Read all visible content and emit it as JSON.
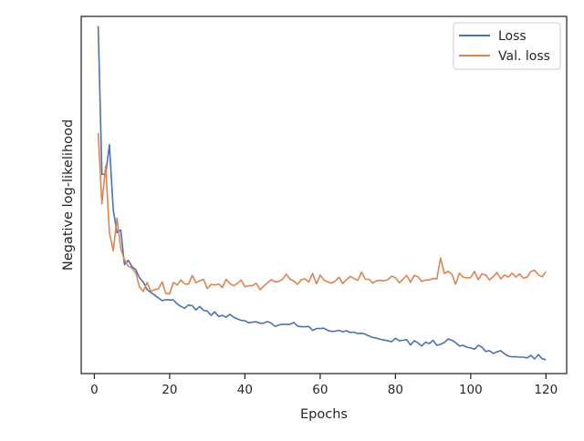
{
  "chart_data": {
    "type": "line",
    "xlabel": "Epochs",
    "ylabel": "Negative log-likelihood",
    "xlim": [
      -3.5,
      125.5
    ],
    "ylim": [
      0.0,
      1.0
    ],
    "x_ticks": [
      0,
      20,
      40,
      60,
      80,
      100,
      120
    ],
    "x_tick_labels": [
      "0",
      "20",
      "40",
      "60",
      "80",
      "100",
      "120"
    ],
    "y_ticks": [],
    "grid": false,
    "legend": {
      "placement": "top-right",
      "entries": [
        "Loss",
        "Val. loss"
      ]
    },
    "colors": {
      "Loss": "#4c72b0",
      "Val. loss": "#dd8452",
      "axis": "#262626"
    },
    "x": [
      1,
      2,
      3,
      4,
      5,
      6,
      7,
      8,
      9,
      10,
      11,
      12,
      13,
      14,
      15,
      16,
      17,
      18,
      19,
      20,
      21,
      22,
      23,
      24,
      25,
      26,
      27,
      28,
      29,
      30,
      31,
      32,
      33,
      34,
      35,
      36,
      37,
      38,
      39,
      40,
      41,
      42,
      43,
      44,
      45,
      46,
      47,
      48,
      49,
      50,
      51,
      52,
      53,
      54,
      55,
      56,
      57,
      58,
      59,
      60,
      61,
      62,
      63,
      64,
      65,
      66,
      67,
      68,
      69,
      70,
      71,
      72,
      73,
      74,
      75,
      76,
      77,
      78,
      79,
      80,
      81,
      82,
      83,
      84,
      85,
      86,
      87,
      88,
      89,
      90,
      91,
      92,
      93,
      94,
      95,
      96,
      97,
      98,
      99,
      100,
      101,
      102,
      103,
      104,
      105,
      106,
      107,
      108,
      109,
      110,
      111,
      112,
      113,
      114,
      115,
      116,
      117,
      118,
      119,
      120
    ],
    "series": [
      {
        "name": "Loss",
        "values": [
          0.973,
          0.558,
          0.558,
          0.641,
          0.459,
          0.395,
          0.402,
          0.305,
          0.317,
          0.299,
          0.291,
          0.268,
          0.256,
          0.235,
          0.227,
          0.22,
          0.212,
          0.204,
          0.207,
          0.206,
          0.206,
          0.195,
          0.188,
          0.183,
          0.192,
          0.19,
          0.178,
          0.188,
          0.177,
          0.175,
          0.163,
          0.173,
          0.16,
          0.163,
          0.158,
          0.166,
          0.158,
          0.153,
          0.149,
          0.148,
          0.142,
          0.144,
          0.145,
          0.141,
          0.141,
          0.146,
          0.141,
          0.132,
          0.136,
          0.138,
          0.138,
          0.138,
          0.143,
          0.133,
          0.131,
          0.131,
          0.132,
          0.121,
          0.126,
          0.126,
          0.127,
          0.121,
          0.118,
          0.119,
          0.121,
          0.117,
          0.12,
          0.115,
          0.116,
          0.112,
          0.113,
          0.11,
          0.105,
          0.101,
          0.099,
          0.096,
          0.094,
          0.092,
          0.089,
          0.099,
          0.092,
          0.093,
          0.095,
          0.08,
          0.092,
          0.086,
          0.077,
          0.088,
          0.084,
          0.093,
          0.079,
          0.082,
          0.087,
          0.097,
          0.093,
          0.087,
          0.077,
          0.079,
          0.074,
          0.072,
          0.068,
          0.079,
          0.074,
          0.062,
          0.064,
          0.056,
          0.061,
          0.064,
          0.055,
          0.049,
          0.047,
          0.047,
          0.046,
          0.046,
          0.044,
          0.051,
          0.041,
          0.053,
          0.041,
          0.039
        ]
      },
      {
        "name": "Val. loss",
        "values": [
          0.673,
          0.475,
          0.581,
          0.395,
          0.344,
          0.435,
          0.35,
          0.319,
          0.301,
          0.295,
          0.282,
          0.242,
          0.23,
          0.255,
          0.23,
          0.235,
          0.237,
          0.257,
          0.224,
          0.223,
          0.255,
          0.248,
          0.262,
          0.251,
          0.25,
          0.275,
          0.254,
          0.26,
          0.264,
          0.238,
          0.25,
          0.248,
          0.251,
          0.241,
          0.264,
          0.252,
          0.246,
          0.252,
          0.262,
          0.243,
          0.246,
          0.246,
          0.253,
          0.235,
          0.245,
          0.254,
          0.263,
          0.257,
          0.258,
          0.264,
          0.278,
          0.264,
          0.259,
          0.25,
          0.263,
          0.265,
          0.256,
          0.28,
          0.251,
          0.276,
          0.262,
          0.257,
          0.253,
          0.259,
          0.27,
          0.252,
          0.263,
          0.272,
          0.266,
          0.261,
          0.284,
          0.264,
          0.264,
          0.253,
          0.26,
          0.261,
          0.26,
          0.263,
          0.273,
          0.268,
          0.254,
          0.264,
          0.275,
          0.256,
          0.275,
          0.271,
          0.258,
          0.262,
          0.262,
          0.266,
          0.265,
          0.324,
          0.28,
          0.286,
          0.278,
          0.25,
          0.281,
          0.27,
          0.268,
          0.269,
          0.286,
          0.263,
          0.279,
          0.276,
          0.262,
          0.272,
          0.283,
          0.265,
          0.276,
          0.27,
          0.281,
          0.27,
          0.279,
          0.267,
          0.27,
          0.286,
          0.289,
          0.276,
          0.271,
          0.285
        ]
      }
    ]
  }
}
